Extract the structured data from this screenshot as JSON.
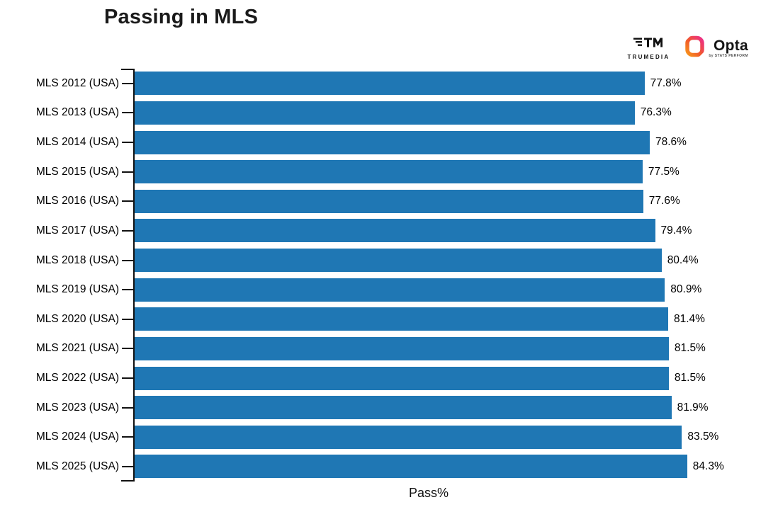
{
  "header": {
    "title": "Passing in MLS",
    "branding": {
      "trumedia": {
        "icon": "trumedia-tm-icon",
        "label": "TRUMEDIA"
      },
      "opta": {
        "icon": "opta-ring-icon",
        "label": "Opta",
        "tagline": "by STATS PERFORM"
      }
    }
  },
  "chart_data": {
    "type": "bar",
    "orientation": "horizontal",
    "title": "Passing in MLS",
    "xlabel": "Pass%",
    "ylabel": "",
    "categories": [
      "MLS 2012 (USA)",
      "MLS 2013 (USA)",
      "MLS 2014 (USA)",
      "MLS 2015 (USA)",
      "MLS 2016 (USA)",
      "MLS 2017 (USA)",
      "MLS 2018 (USA)",
      "MLS 2019 (USA)",
      "MLS 2020 (USA)",
      "MLS 2021 (USA)",
      "MLS 2022 (USA)",
      "MLS 2023 (USA)",
      "MLS 2024 (USA)",
      "MLS 2025 (USA)"
    ],
    "values": [
      77.8,
      76.3,
      78.6,
      77.5,
      77.6,
      79.4,
      80.4,
      80.9,
      81.4,
      81.5,
      81.5,
      81.9,
      83.5,
      84.3
    ],
    "value_labels": [
      "77.8%",
      "76.3%",
      "78.6%",
      "77.5%",
      "77.6%",
      "79.4%",
      "80.4%",
      "80.9%",
      "81.4%",
      "81.5%",
      "81.5%",
      "81.9%",
      "83.5%",
      "84.3%"
    ],
    "bar_color": "#1F77B4",
    "grid": false,
    "legend": false,
    "xlim_estimate": [
      0,
      93
    ]
  }
}
